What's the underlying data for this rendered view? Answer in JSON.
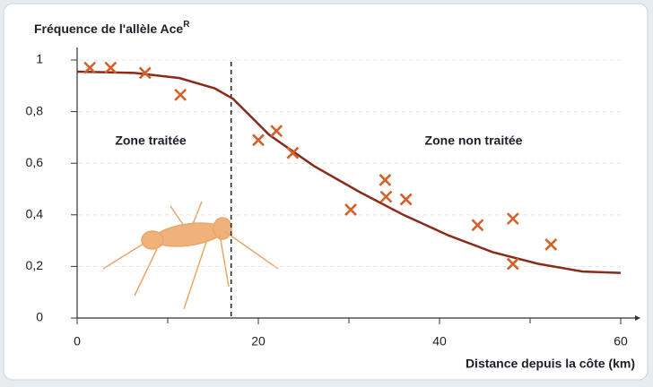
{
  "chart_data": {
    "type": "scatter",
    "title": "Fréquence de l'allèle Ace",
    "title_superscript": "R",
    "x_label": "Distance depuis la côte (km)",
    "annotations": [
      "Zone traitée",
      "Zone non traitée"
    ],
    "annotation_colors": [
      "#2b2f5a",
      "#4a7a2a"
    ],
    "xlim": [
      0,
      60
    ],
    "xticks": [
      0,
      20,
      40,
      60
    ],
    "xminor_ticks": [
      10,
      30,
      50
    ],
    "ylim": [
      0,
      1
    ],
    "yticks": [
      0,
      {
        "value": 0.2,
        "label": "0,2"
      },
      {
        "value": 0.4,
        "label": "0,4"
      },
      {
        "value": 0.6,
        "label": "0,6"
      },
      {
        "value": 0.8,
        "label": "0,8"
      },
      1
    ],
    "grid": true,
    "divider_x": 17,
    "points": {
      "color": "#d4602a",
      "x": [
        1.4,
        3.7,
        7.5,
        11.4,
        20,
        22,
        23.8,
        30.2,
        34,
        34.1,
        36.3,
        44.2,
        48.1,
        48.1,
        52.3
      ],
      "y": [
        0.97,
        0.97,
        0.95,
        0.865,
        0.69,
        0.725,
        0.64,
        0.42,
        0.535,
        0.47,
        0.46,
        0.36,
        0.385,
        0.21,
        0.285
      ]
    },
    "curve": {
      "color": "#8b2a1a",
      "x": [
        0,
        6.3,
        11.3,
        15.2,
        17.2,
        19.2,
        21.2,
        26.1,
        31.1,
        36,
        41,
        45.9,
        50.9,
        55.8,
        60
      ],
      "y": [
        0.955,
        0.95,
        0.93,
        0.89,
        0.85,
        0.78,
        0.71,
        0.59,
        0.49,
        0.4,
        0.32,
        0.255,
        0.21,
        0.18,
        0.175
      ]
    }
  }
}
